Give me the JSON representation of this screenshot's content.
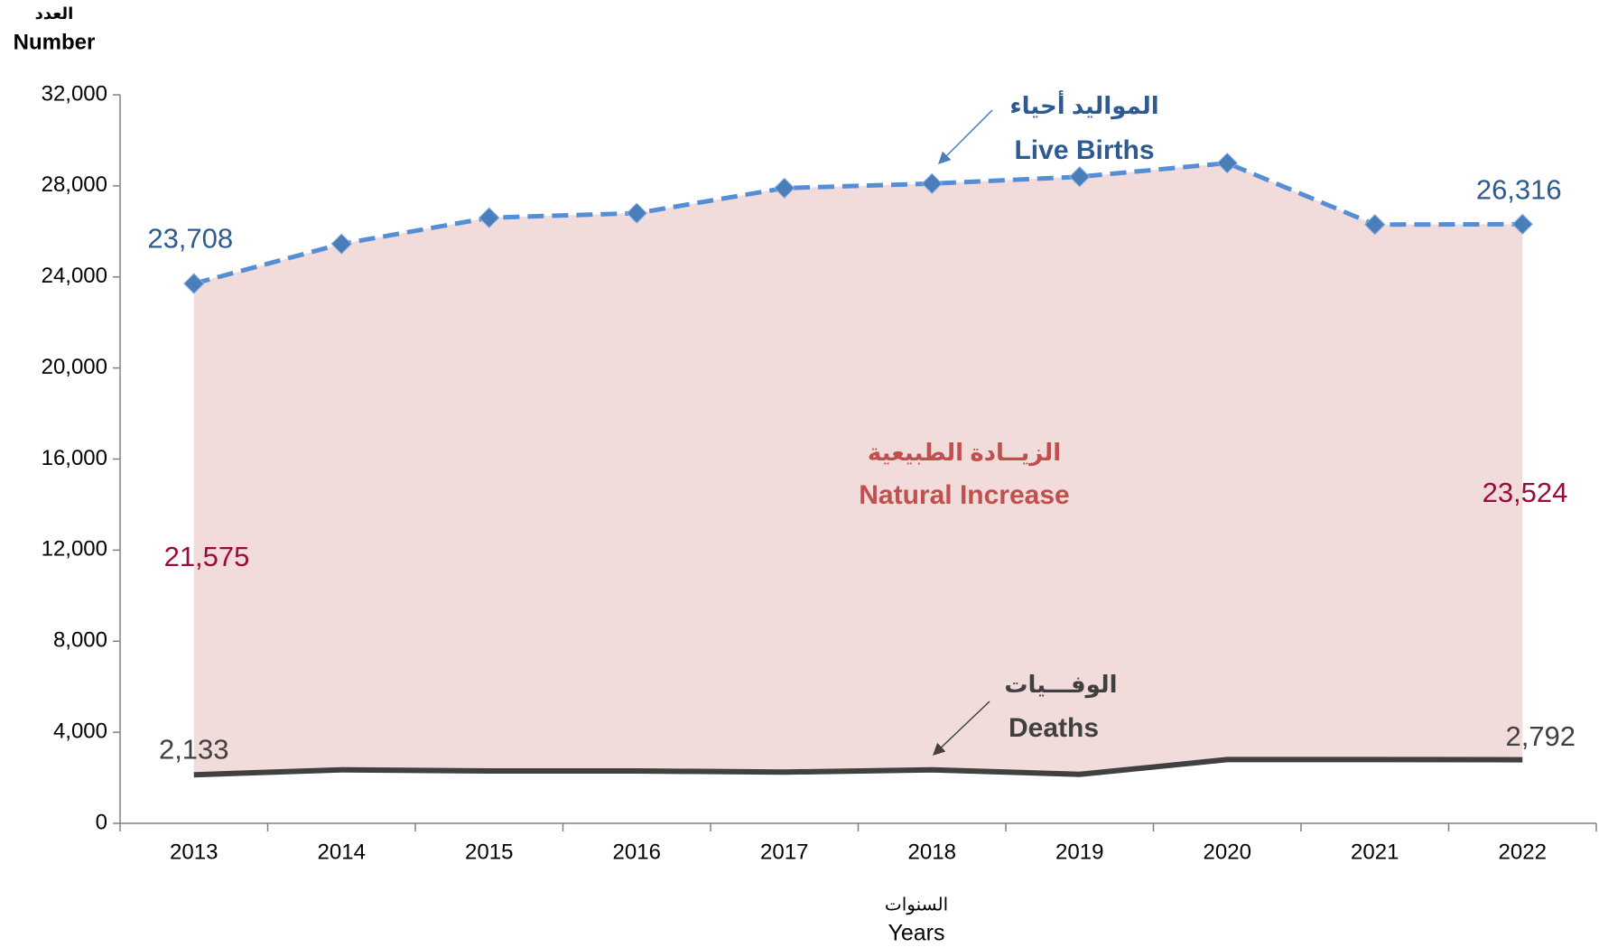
{
  "chart_data": {
    "type": "line",
    "y_title_ar": "العدد",
    "y_title": "Number",
    "x_title_ar": "السنوات",
    "x_title": "Years",
    "categories": [
      "2013",
      "2014",
      "2015",
      "2016",
      "2017",
      "2018",
      "2019",
      "2020",
      "2021",
      "2022"
    ],
    "series": [
      {
        "name": "Live Births",
        "name_ar": "المواليد أحياء",
        "color": "#558ed5",
        "marker_color": "#4a7ebb",
        "label_color": "#2e5a8f",
        "values": [
          23708,
          25450,
          26600,
          26800,
          27900,
          28100,
          28400,
          29000,
          26300,
          26316
        ],
        "value_labels": [
          "23,708",
          null,
          null,
          null,
          null,
          null,
          null,
          null,
          null,
          "26,316"
        ]
      },
      {
        "name": "Deaths",
        "name_ar": "الوفـــيات",
        "color": "#404040",
        "label_color": "#404040",
        "values": [
          2133,
          2350,
          2300,
          2300,
          2250,
          2350,
          2150,
          2800,
          2800,
          2792
        ],
        "value_labels": [
          "2,133",
          null,
          null,
          null,
          null,
          null,
          null,
          null,
          null,
          "2,792"
        ]
      }
    ],
    "natural_increase": {
      "name": "Natural Increase",
      "name_ar": "الزيــادة الطبيعية",
      "color": "#f2dcdb",
      "title_color": "#c0504d",
      "label_color": "#9c0a3c",
      "values": [
        21575,
        null,
        null,
        null,
        null,
        null,
        null,
        null,
        null,
        23524
      ],
      "value_labels": [
        "21,575",
        null,
        null,
        null,
        null,
        null,
        null,
        null,
        null,
        "23,524"
      ]
    },
    "ylim": [
      0,
      32000
    ],
    "yticks": [
      0,
      {
        "value": 4000,
        "label": "4,000"
      },
      {
        "value": 8000,
        "label": "8,000"
      },
      {
        "value": 12000,
        "label": "12,000"
      },
      {
        "value": 16000,
        "label": "16,000"
      },
      {
        "value": 20000,
        "label": "20,000"
      },
      {
        "value": 24000,
        "label": "24,000"
      },
      {
        "value": 28000,
        "label": "28,000"
      },
      {
        "value": 32000,
        "label": "32,000"
      }
    ]
  }
}
